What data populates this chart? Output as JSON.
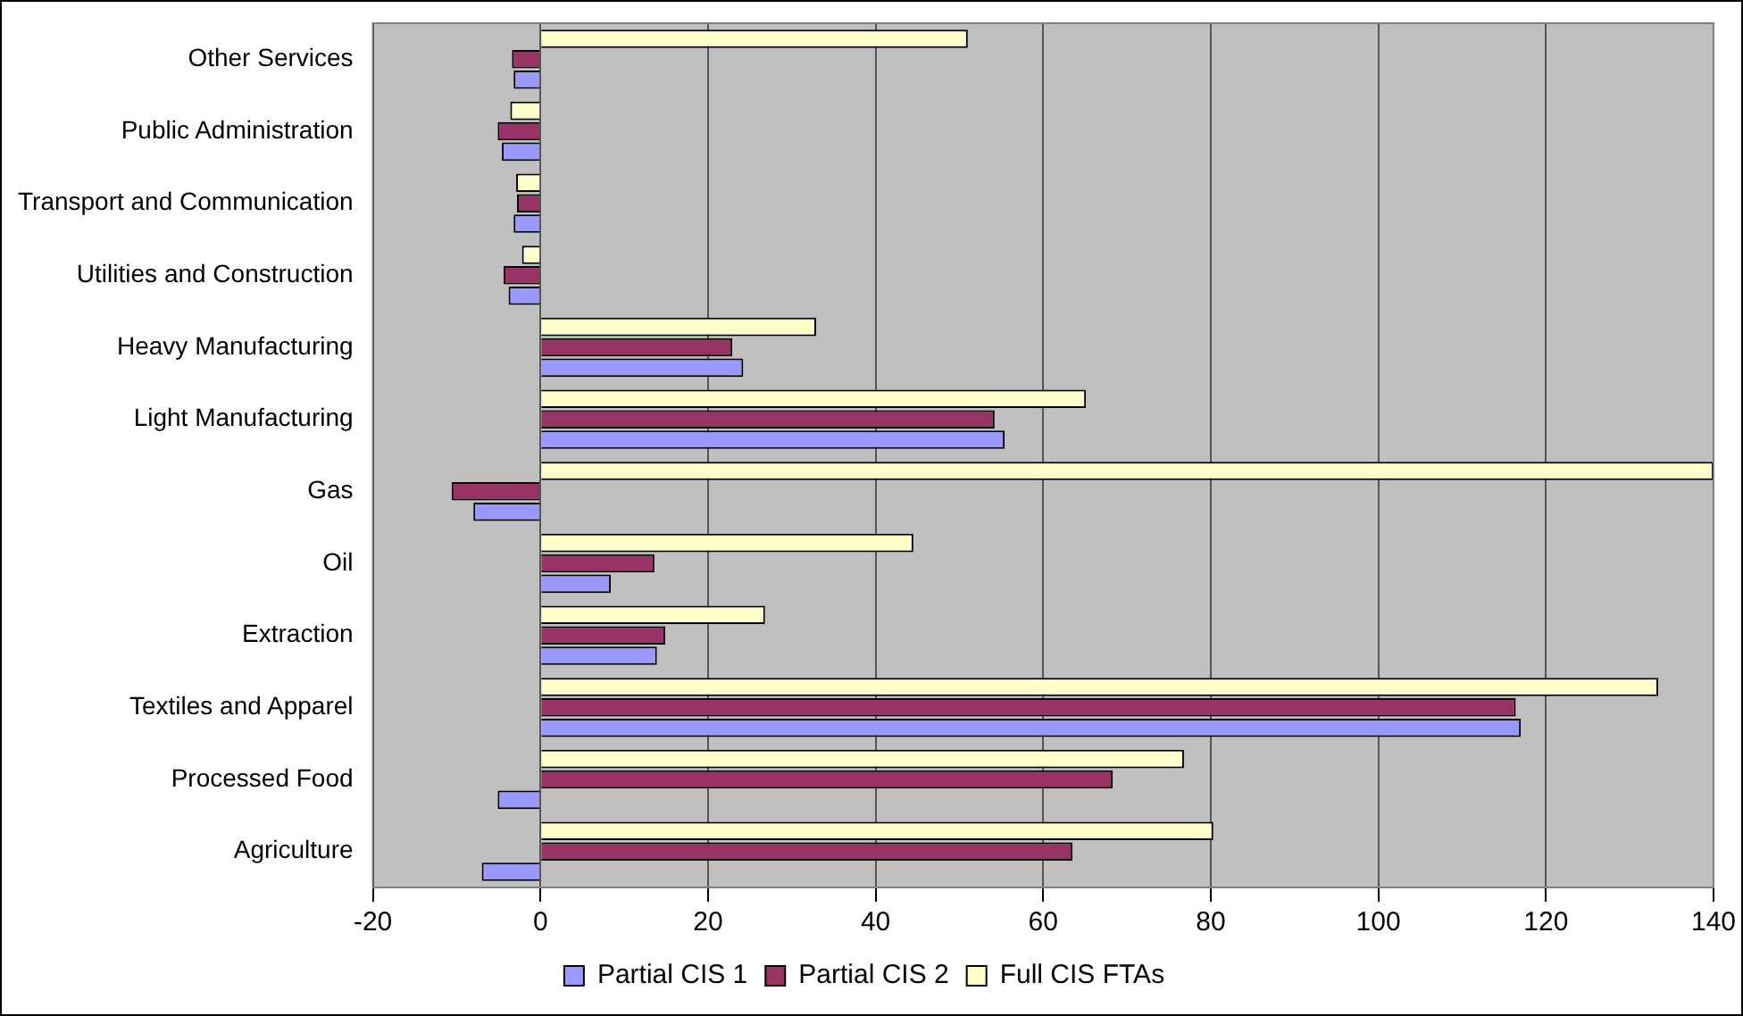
{
  "chart_data": {
    "type": "bar",
    "orientation": "horizontal",
    "categories": [
      "Other Services",
      "Public Administration",
      "Transport and Communication",
      "Utilities and Construction",
      "Heavy Manufacturing",
      "Light Manufacturing",
      "Gas",
      "Oil",
      "Extraction",
      "Textiles and Apparel",
      "Processed Food",
      "Agriculture"
    ],
    "series": [
      {
        "name": "Partial CIS 1",
        "color": "#9999ff",
        "values": [
          -3.2,
          -4.6,
          -3.2,
          -3.8,
          24.2,
          55.4,
          -8.0,
          8.4,
          13.9,
          117.0,
          -5.1,
          -7.0
        ]
      },
      {
        "name": "Partial CIS 2",
        "color": "#993366",
        "values": [
          -3.4,
          -5.1,
          -2.8,
          -4.4,
          22.9,
          54.2,
          -10.6,
          13.6,
          14.9,
          116.4,
          68.3,
          63.5
        ]
      },
      {
        "name": "Full CIS FTAs",
        "color": "#ffffcc",
        "values": [
          51,
          -3.6,
          -2.9,
          -2.2,
          32.9,
          65.1,
          140,
          44.5,
          26.8,
          133.4,
          76.8,
          80.3
        ]
      }
    ],
    "xlim": [
      -20,
      140
    ],
    "xticks": [
      -20,
      0,
      20,
      40,
      60,
      80,
      100,
      120,
      140
    ],
    "grid": "x",
    "legend": "bottom"
  }
}
